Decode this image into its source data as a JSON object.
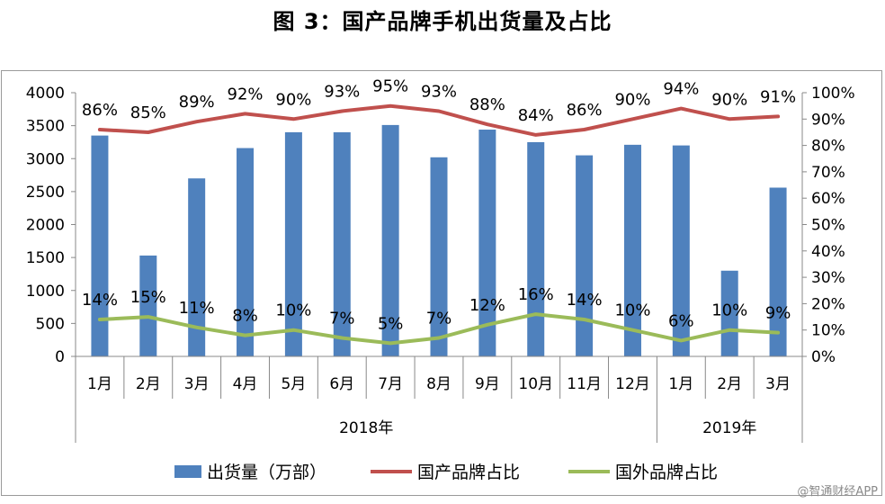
{
  "header": {
    "title": "图 3：国产品牌手机出货量及占比"
  },
  "chart_data": {
    "type": "bar",
    "title": "图 3：国产品牌手机出货量及占比",
    "categories": [
      "1月",
      "2月",
      "3月",
      "4月",
      "5月",
      "6月",
      "7月",
      "8月",
      "9月",
      "10月",
      "11月",
      "12月",
      "1月",
      "2月",
      "3月"
    ],
    "year_groups": [
      {
        "label": "2018年",
        "count": 12
      },
      {
        "label": "2019年",
        "count": 3
      }
    ],
    "series": [
      {
        "name": "出货量（万部）",
        "kind": "bar",
        "axis": "left",
        "color": "#4F81BD",
        "values": [
          3350,
          1530,
          2700,
          3160,
          3400,
          3400,
          3510,
          3020,
          3440,
          3250,
          3050,
          3210,
          3200,
          1300,
          2560
        ]
      },
      {
        "name": "国产品牌占比",
        "kind": "line",
        "axis": "right",
        "color": "#C0504D",
        "values": [
          86,
          85,
          89,
          92,
          90,
          93,
          95,
          93,
          88,
          84,
          86,
          90,
          94,
          90,
          91
        ],
        "labels": [
          "86%",
          "85%",
          "89%",
          "92%",
          "90%",
          "93%",
          "95%",
          "93%",
          "88%",
          "84%",
          "86%",
          "90%",
          "94%",
          "90%",
          "91%"
        ]
      },
      {
        "name": "国外品牌占比",
        "kind": "line",
        "axis": "right",
        "color": "#9BBB59",
        "values": [
          14,
          15,
          11,
          8,
          10,
          7,
          5,
          7,
          12,
          16,
          14,
          10,
          6,
          10,
          9
        ],
        "labels": [
          "14%",
          "15%",
          "11%",
          "8%",
          "10%",
          "7%",
          "5%",
          "7%",
          "12%",
          "16%",
          "14%",
          "10%",
          "6%",
          "10%",
          "9%"
        ]
      }
    ],
    "y_left": {
      "min": 0,
      "max": 4000,
      "step": 500,
      "ticks": [
        "0",
        "500",
        "1000",
        "1500",
        "2000",
        "2500",
        "3000",
        "3500",
        "4000"
      ]
    },
    "y_right": {
      "min": 0,
      "max": 100,
      "step": 10,
      "ticks": [
        "0%",
        "10%",
        "20%",
        "30%",
        "40%",
        "50%",
        "60%",
        "70%",
        "80%",
        "90%",
        "100%"
      ]
    },
    "legend_position": "bottom",
    "grid": false
  },
  "watermark": "@智通财经APP"
}
